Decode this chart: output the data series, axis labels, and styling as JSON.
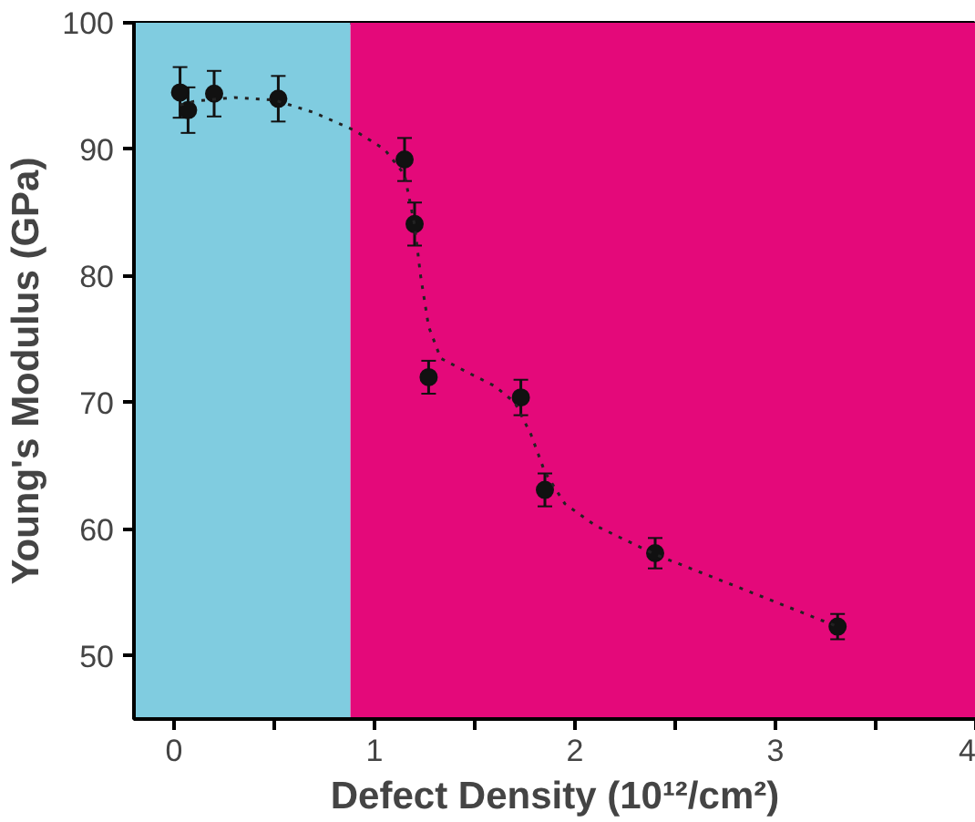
{
  "chart_data": {
    "type": "scatter",
    "xlabel": "Defect Density (10¹²/cm²)",
    "ylabel": "Young's Modulus (GPa)",
    "x": [
      0.03,
      0.07,
      0.2,
      0.52,
      1.15,
      1.2,
      1.27,
      1.73,
      1.85,
      2.4,
      3.31
    ],
    "series": [
      {
        "color": "#111111",
        "marker": "circle",
        "values": [
          94.5,
          93.1,
          94.4,
          94.0,
          89.2,
          84.1,
          72.0,
          70.4,
          63.1,
          58.1,
          52.3
        ],
        "errors": [
          2,
          1.8,
          1.8,
          1.8,
          1.7,
          1.7,
          1.3,
          1.4,
          1.3,
          1.2,
          1.0
        ]
      },
      {
        "type": "line",
        "color": "#222222",
        "line_style": "dotted",
        "x": [
          0.03,
          0.1,
          0.3,
          0.5,
          0.7,
          0.9,
          1.05,
          1.15,
          1.2,
          1.23,
          1.27,
          1.33,
          1.45,
          1.6,
          1.7,
          1.78,
          1.85,
          1.95,
          2.1,
          2.4,
          2.8,
          3.31
        ],
        "values": [
          93.5,
          93.8,
          94.1,
          93.9,
          92.9,
          91.5,
          90.0,
          88.0,
          84.0,
          80.0,
          76.0,
          73.5,
          72.5,
          71.3,
          70.0,
          67.5,
          64.5,
          62.0,
          60.3,
          58.0,
          55.5,
          52.3
        ]
      }
    ],
    "bands": [
      {
        "axis": "x",
        "from": -0.2,
        "to": 0.88,
        "color": "#80cce0"
      },
      {
        "axis": "x",
        "from": 0.88,
        "to": 4,
        "color": "#e4097a"
      }
    ],
    "xlim": [
      -0.2,
      4
    ],
    "xticks": [
      0,
      {
        "value": 0.5,
        "label": null
      },
      1,
      {
        "value": 1.5,
        "label": null
      },
      2,
      {
        "value": 2.5,
        "label": null
      },
      3,
      {
        "value": 3.5,
        "label": null
      },
      4
    ],
    "ylim": [
      45,
      100
    ],
    "yticks": [
      50,
      60,
      70,
      80,
      90,
      100
    ],
    "grid": false
  }
}
